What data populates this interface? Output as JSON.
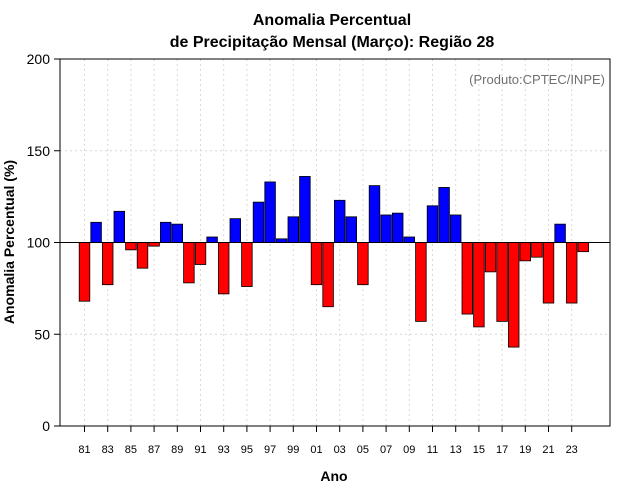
{
  "chart_data": {
    "type": "bar",
    "title_lines": [
      "Anomalia Percentual",
      "de Precipitação Mensal (Março): Região 28"
    ],
    "ylabel": "Anomalia Percentual (%)",
    "xlabel": "Ano",
    "credit": "(Produto:CPTEC/INPE)",
    "baseline": 100,
    "ylim": [
      0,
      200
    ],
    "yticks": [
      0,
      50,
      100,
      150,
      200
    ],
    "categories": [
      "1981",
      "1982",
      "1983",
      "1984",
      "1985",
      "1986",
      "1987",
      "1988",
      "1989",
      "1990",
      "1991",
      "1992",
      "1993",
      "1994",
      "1995",
      "1996",
      "1997",
      "1998",
      "1999",
      "2000",
      "2001",
      "2002",
      "2003",
      "2004",
      "2005",
      "2006",
      "2007",
      "2008",
      "2009",
      "2010",
      "2011",
      "2012",
      "2013",
      "2014",
      "2015",
      "2016",
      "2017",
      "2018",
      "2019",
      "2020",
      "2021",
      "2022",
      "2023",
      "2024"
    ],
    "xtick_labels": [
      "81",
      "83",
      "85",
      "87",
      "89",
      "91",
      "93",
      "95",
      "97",
      "99",
      "01",
      "03",
      "05",
      "07",
      "09",
      "11",
      "13",
      "15",
      "17",
      "19",
      "21",
      "23"
    ],
    "values": [
      68,
      111,
      77,
      117,
      96,
      86,
      98,
      111,
      110,
      78,
      88,
      103,
      72,
      113,
      76,
      122,
      133,
      102,
      114,
      136,
      77,
      65,
      123,
      114,
      77,
      131,
      115,
      116,
      103,
      57,
      120,
      130,
      115,
      61,
      54,
      84,
      57,
      43,
      90,
      92,
      67,
      110,
      67,
      95
    ],
    "colors": {
      "above": "#0000ff",
      "below": "#ff0000"
    }
  }
}
